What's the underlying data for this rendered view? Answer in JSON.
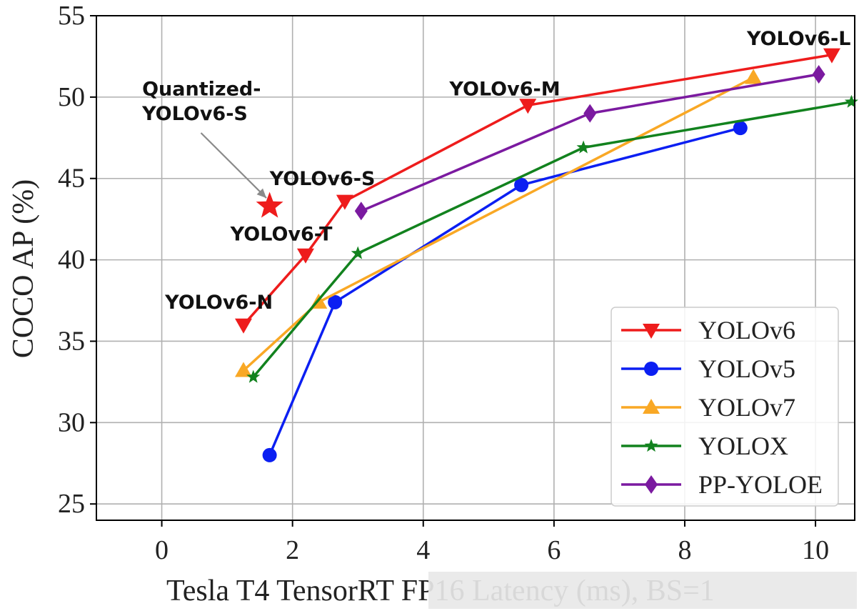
{
  "chart_data": {
    "type": "line",
    "xlabel": "Tesla T4 TensorRT FP16 Latency (ms), BS=1",
    "ylabel": "COCO AP (%)",
    "xlim": [
      -1,
      10.6
    ],
    "ylim": [
      24,
      55
    ],
    "xticks": [
      0,
      2,
      4,
      6,
      8,
      10
    ],
    "yticks": [
      25,
      30,
      35,
      40,
      45,
      50,
      55
    ],
    "grid": true,
    "legend_position": "bottom-right",
    "series": [
      {
        "name": "YOLOv6",
        "color": "#ee1c1c",
        "marker": "triangle-down",
        "x": [
          1.25,
          2.2,
          2.8,
          5.6,
          10.25
        ],
        "y": [
          36.0,
          40.3,
          43.6,
          49.5,
          52.6
        ]
      },
      {
        "name": "YOLOv5",
        "color": "#0b1ff2",
        "marker": "circle",
        "x": [
          1.65,
          2.65,
          5.5,
          8.85
        ],
        "y": [
          28.0,
          37.4,
          44.6,
          48.1
        ]
      },
      {
        "name": "YOLOv7",
        "color": "#f9a825",
        "marker": "triangle-up",
        "x": [
          1.25,
          2.4,
          9.05
        ],
        "y": [
          33.2,
          37.4,
          51.2
        ]
      },
      {
        "name": "YOLOX",
        "color": "#12821e",
        "marker": "star",
        "x": [
          1.4,
          3.0,
          6.45,
          10.55
        ],
        "y": [
          32.8,
          40.4,
          46.9,
          49.7
        ]
      },
      {
        "name": "PP-YOLOE",
        "color": "#7b1aa0",
        "marker": "diamond",
        "x": [
          3.05,
          6.55,
          10.05
        ],
        "y": [
          43.0,
          49.0,
          51.4
        ]
      }
    ],
    "highlight_point": {
      "color": "#ee1c1c",
      "marker": "star",
      "x": 1.65,
      "y": 43.3
    },
    "annotations": [
      {
        "text": "YOLOv6-N",
        "x": 0.05,
        "y": 37.0
      },
      {
        "text": "YOLOv6-T",
        "x": 1.05,
        "y": 41.2
      },
      {
        "text": "YOLOv6-S",
        "x": 1.65,
        "y": 44.6
      },
      {
        "text": "YOLOv6-M",
        "x": 4.4,
        "y": 50.1
      },
      {
        "text": "YOLOv6-L",
        "x": 8.95,
        "y": 53.2
      },
      {
        "text": "Quantized-",
        "x": -0.3,
        "y": 50.1
      },
      {
        "text": "YOLOv6-S",
        "x": -0.3,
        "y": 48.6
      }
    ],
    "arrow": {
      "from_x": 0.6,
      "from_y": 47.8,
      "to_x": 1.6,
      "to_y": 43.8
    }
  }
}
